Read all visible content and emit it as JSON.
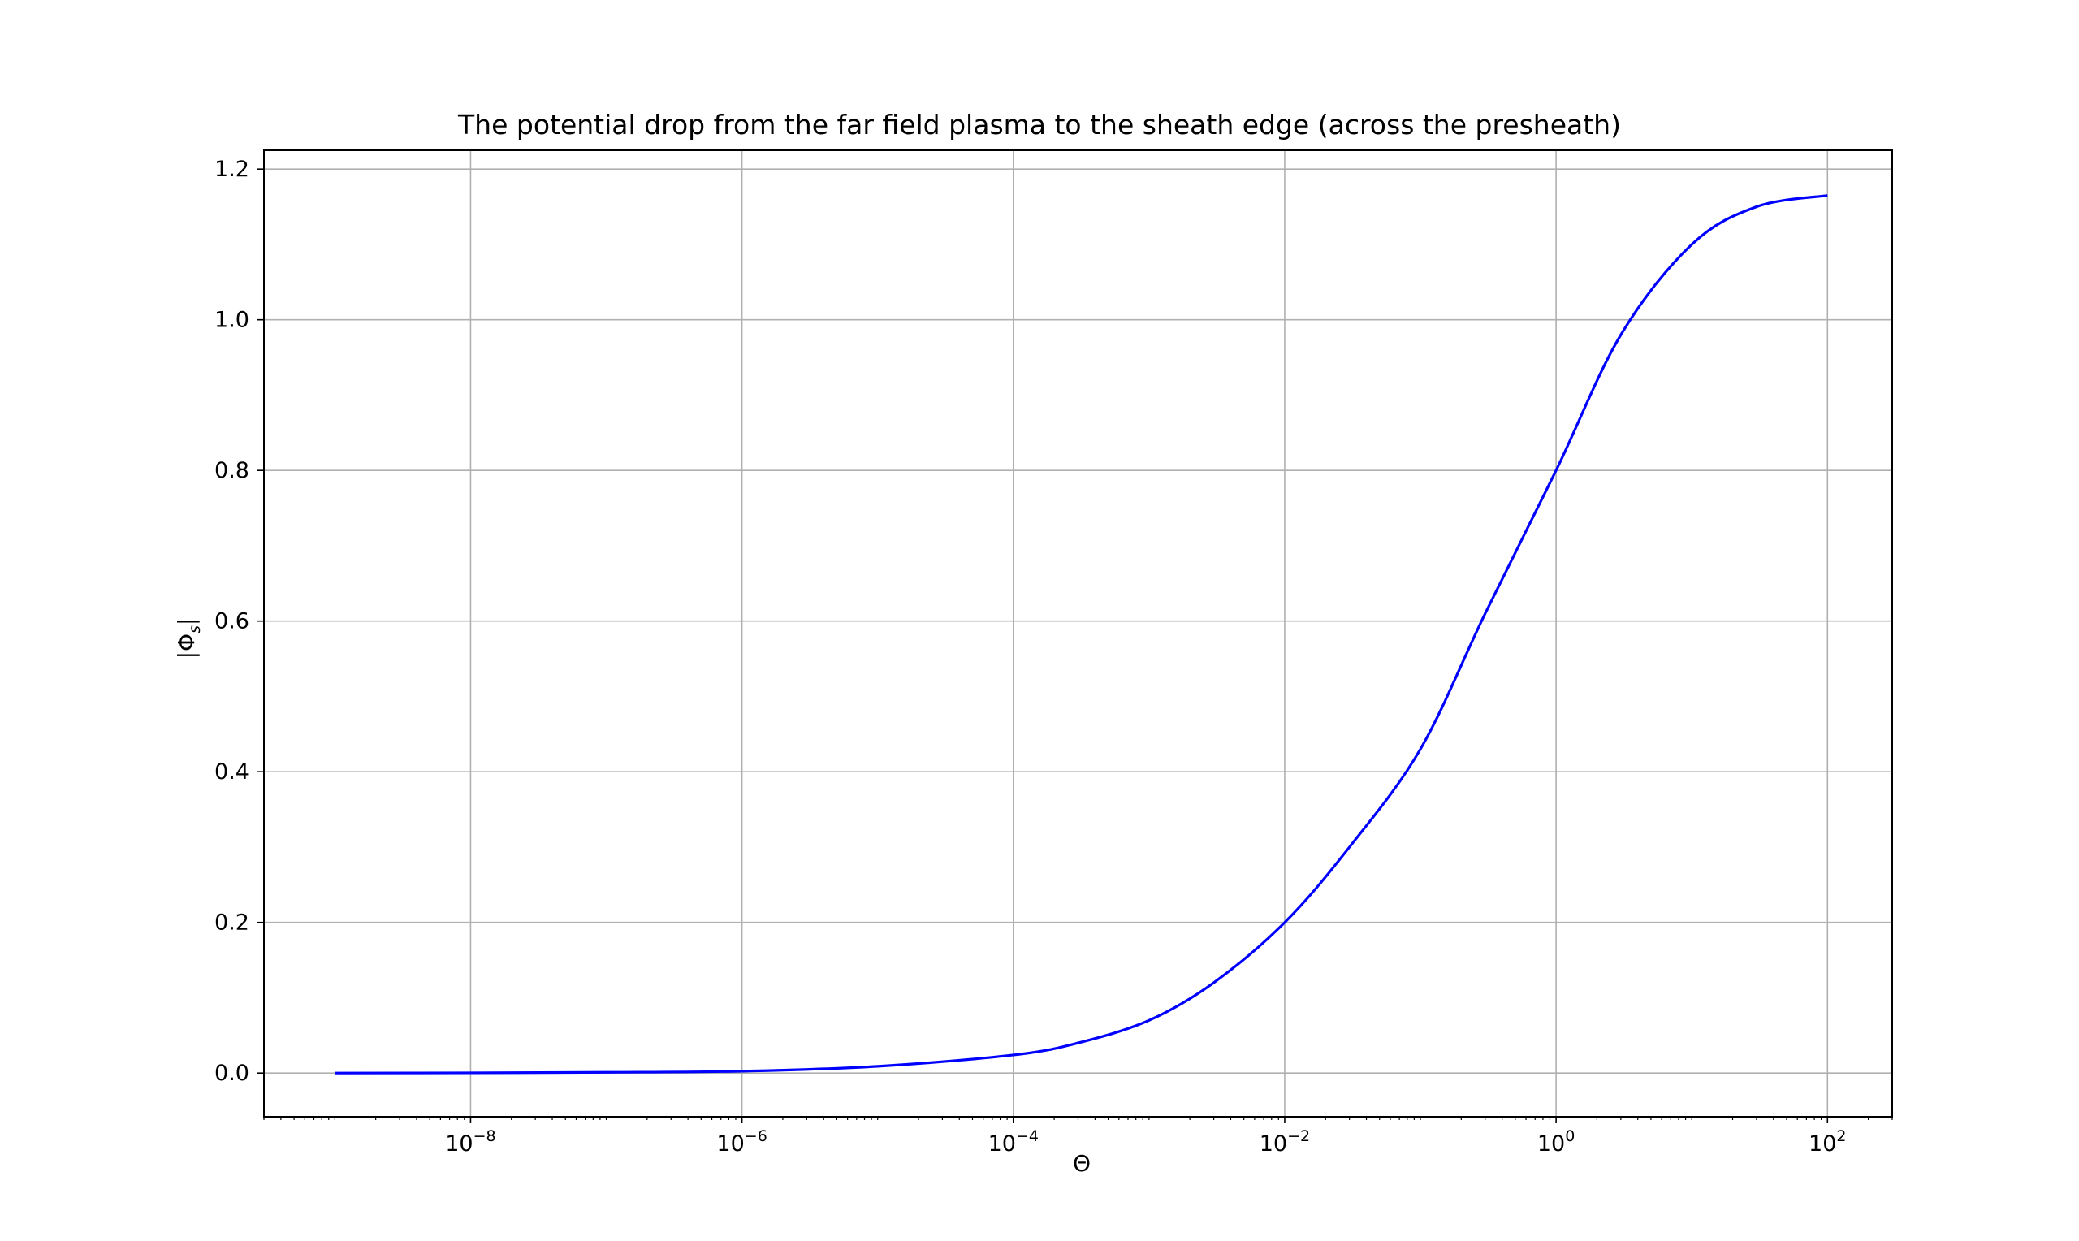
{
  "chart_data": {
    "type": "line",
    "title": "The potential drop from the far field plasma to the sheath edge (across the presheath)",
    "xlabel": "Θ",
    "ylabel_main": "|Φ",
    "ylabel_sub": "s",
    "ylabel_close": "|",
    "x_scale": "log",
    "xlim": [
      3e-10,
      300.0
    ],
    "ylim": [
      -0.058,
      1.225
    ],
    "grid": true,
    "x_ticks": [
      {
        "value": 1e-08,
        "base": "10",
        "exp": "−8"
      },
      {
        "value": 1e-06,
        "base": "10",
        "exp": "−6"
      },
      {
        "value": 0.0001,
        "base": "10",
        "exp": "−4"
      },
      {
        "value": 0.01,
        "base": "10",
        "exp": "−2"
      },
      {
        "value": 1,
        "base": "10",
        "exp": "0"
      },
      {
        "value": 100,
        "base": "10",
        "exp": "2"
      }
    ],
    "y_ticks": [
      {
        "value": 0.0,
        "label": "0.0"
      },
      {
        "value": 0.2,
        "label": "0.2"
      },
      {
        "value": 0.4,
        "label": "0.4"
      },
      {
        "value": 0.6,
        "label": "0.6"
      },
      {
        "value": 0.8,
        "label": "0.8"
      },
      {
        "value": 1.0,
        "label": "1.0"
      },
      {
        "value": 1.2,
        "label": "1.2"
      }
    ],
    "series": [
      {
        "color": "#0000ff",
        "x": [
          1e-09,
          1e-08,
          1e-07,
          1e-06,
          1e-05,
          0.0001,
          0.0003,
          0.001,
          0.003,
          0.01,
          0.03,
          0.1,
          0.3,
          1,
          3,
          10,
          30,
          100
        ],
        "y": [
          0.0,
          0.0003,
          0.001,
          0.0025,
          0.009,
          0.024,
          0.04,
          0.07,
          0.12,
          0.2,
          0.3,
          0.43,
          0.61,
          0.8,
          0.98,
          1.1,
          1.15,
          1.165
        ]
      }
    ]
  }
}
